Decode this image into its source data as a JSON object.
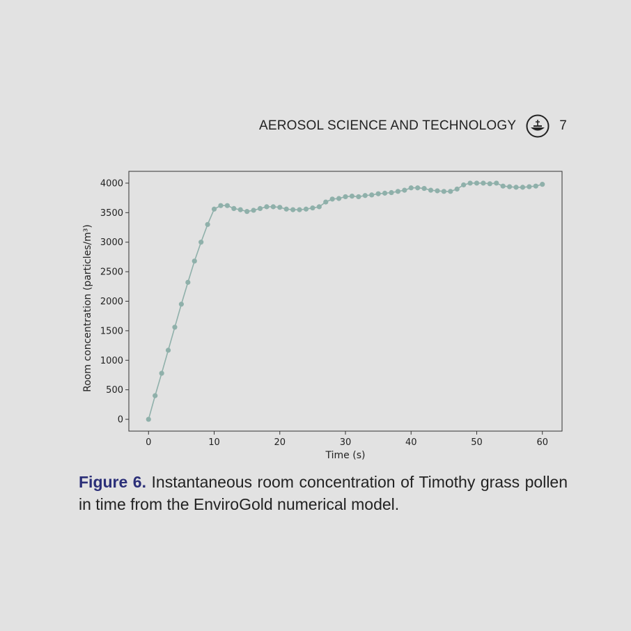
{
  "header": {
    "journal_title": "AEROSOL SCIENCE AND TECHNOLOGY",
    "page_number": "7",
    "logo_icon": "aerosol-journal-logo-icon"
  },
  "caption": {
    "label": "Figure 6.",
    "text": "Instantaneous room concentration of Timothy grass pollen in time from the EnviroGold numerical model."
  },
  "chart_data": {
    "type": "line",
    "title": "",
    "xlabel": "Time (s)",
    "ylabel": "Room concentration (particles/m³)",
    "xlim": [
      -3,
      63
    ],
    "ylim": [
      -200,
      4200
    ],
    "xticks": [
      0,
      10,
      20,
      30,
      40,
      50,
      60
    ],
    "yticks": [
      0,
      500,
      1000,
      1500,
      2000,
      2500,
      3000,
      3500,
      4000
    ],
    "grid": false,
    "legend": "none",
    "series": [
      {
        "color": "#8fb0aa",
        "x": [
          0,
          1,
          2,
          3,
          4,
          5,
          6,
          7,
          8,
          9,
          10,
          11,
          12,
          13,
          14,
          15,
          16,
          17,
          18,
          19,
          20,
          21,
          22,
          23,
          24,
          25,
          26,
          27,
          28,
          29,
          30,
          31,
          32,
          33,
          34,
          35,
          36,
          37,
          38,
          39,
          40,
          41,
          42,
          43,
          44,
          45,
          46,
          47,
          48,
          49,
          50,
          51,
          52,
          53,
          54,
          55,
          56,
          57,
          58,
          59,
          60
        ],
        "y": [
          0,
          400,
          780,
          1170,
          1560,
          1950,
          2320,
          2680,
          3000,
          3300,
          3560,
          3620,
          3620,
          3570,
          3550,
          3520,
          3540,
          3570,
          3600,
          3600,
          3590,
          3560,
          3550,
          3550,
          3560,
          3580,
          3600,
          3680,
          3730,
          3740,
          3770,
          3780,
          3770,
          3790,
          3800,
          3820,
          3830,
          3840,
          3860,
          3880,
          3920,
          3920,
          3910,
          3880,
          3870,
          3860,
          3860,
          3900,
          3970,
          4000,
          4000,
          4000,
          3990,
          4000,
          3950,
          3940,
          3930,
          3930,
          3940,
          3950,
          3980
        ]
      }
    ]
  }
}
